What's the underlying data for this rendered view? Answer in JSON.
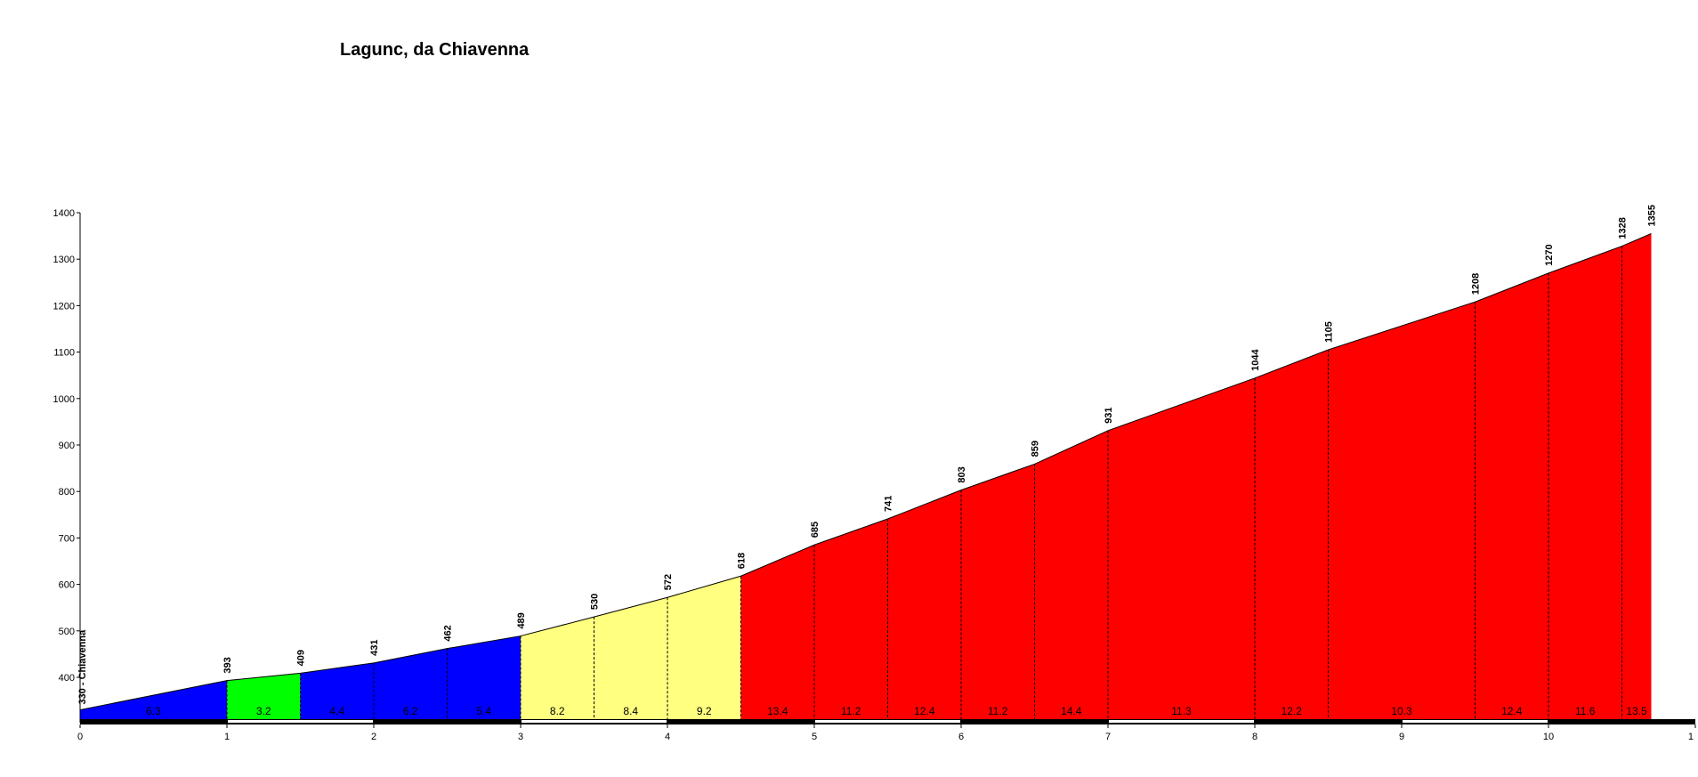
{
  "chart_data": {
    "type": "area",
    "title": "Lagunc, da Chiavenna",
    "xlabel": "",
    "ylabel": "",
    "xlim": [
      0,
      11
    ],
    "ylim": [
      310,
      1400
    ],
    "x_ticks": [
      "0",
      "1",
      "2",
      "3",
      "4",
      "5",
      "6",
      "7",
      "8",
      "9",
      "10",
      "1"
    ],
    "y_ticks": [
      "400",
      "500",
      "600",
      "700",
      "800",
      "900",
      "1000",
      "1100",
      "1200",
      "1300",
      "1400"
    ],
    "grid": false,
    "start_label": "330 - Chiavenna",
    "points": [
      {
        "x": 0,
        "y": 330,
        "label": ""
      },
      {
        "x": 1,
        "y": 393,
        "label": "393"
      },
      {
        "x": 1.5,
        "y": 409,
        "label": "409"
      },
      {
        "x": 2,
        "y": 431,
        "label": "431"
      },
      {
        "x": 2.5,
        "y": 462,
        "label": "462"
      },
      {
        "x": 3,
        "y": 489,
        "label": "489"
      },
      {
        "x": 3.5,
        "y": 530,
        "label": "530"
      },
      {
        "x": 4,
        "y": 572,
        "label": "572"
      },
      {
        "x": 4.5,
        "y": 618,
        "label": "618"
      },
      {
        "x": 5,
        "y": 685,
        "label": "685"
      },
      {
        "x": 5.5,
        "y": 741,
        "label": "741"
      },
      {
        "x": 6,
        "y": 803,
        "label": "803"
      },
      {
        "x": 6.5,
        "y": 859,
        "label": "859"
      },
      {
        "x": 7,
        "y": 931,
        "label": "931"
      },
      {
        "x": 8,
        "y": 1044,
        "label": "1044"
      },
      {
        "x": 8.5,
        "y": 1105,
        "label": "1105"
      },
      {
        "x": 9.5,
        "y": 1208,
        "label": "1208"
      },
      {
        "x": 10,
        "y": 1270,
        "label": "1270"
      },
      {
        "x": 10.5,
        "y": 1328,
        "label": "1328"
      },
      {
        "x": 10.7,
        "y": 1355,
        "label": "1355"
      }
    ],
    "segments": [
      {
        "from": 0,
        "to": 1,
        "gradient": "6.3",
        "color": "#0000ff"
      },
      {
        "from": 1,
        "to": 1.5,
        "gradient": "3.2",
        "color": "#00ff00"
      },
      {
        "from": 1.5,
        "to": 2,
        "gradient": "4.4",
        "color": "#0000ff"
      },
      {
        "from": 2,
        "to": 2.5,
        "gradient": "6.2",
        "color": "#0000ff"
      },
      {
        "from": 2.5,
        "to": 3,
        "gradient": "5.4",
        "color": "#0000ff"
      },
      {
        "from": 3,
        "to": 3.5,
        "gradient": "8.2",
        "color": "#ffff80"
      },
      {
        "from": 3.5,
        "to": 4,
        "gradient": "8.4",
        "color": "#ffff80"
      },
      {
        "from": 4,
        "to": 4.5,
        "gradient": "9.2",
        "color": "#ffff80"
      },
      {
        "from": 4.5,
        "to": 5,
        "gradient": "13.4",
        "color": "#ff0000"
      },
      {
        "from": 5,
        "to": 5.5,
        "gradient": "11.2",
        "color": "#ff0000"
      },
      {
        "from": 5.5,
        "to": 6,
        "gradient": "12.4",
        "color": "#ff0000"
      },
      {
        "from": 6,
        "to": 6.5,
        "gradient": "11.2",
        "color": "#ff0000"
      },
      {
        "from": 6.5,
        "to": 7,
        "gradient": "14.4",
        "color": "#ff0000"
      },
      {
        "from": 7,
        "to": 8,
        "gradient": "11.3",
        "color": "#ff0000"
      },
      {
        "from": 8,
        "to": 8.5,
        "gradient": "12.2",
        "color": "#ff0000"
      },
      {
        "from": 8.5,
        "to": 9.5,
        "gradient": "10.3",
        "color": "#ff0000"
      },
      {
        "from": 9.5,
        "to": 10,
        "gradient": "12.4",
        "color": "#ff0000"
      },
      {
        "from": 10,
        "to": 10.5,
        "gradient": "11.6",
        "color": "#ff0000"
      },
      {
        "from": 10.5,
        "to": 10.7,
        "gradient": "13.5",
        "color": "#ff0000"
      }
    ]
  }
}
